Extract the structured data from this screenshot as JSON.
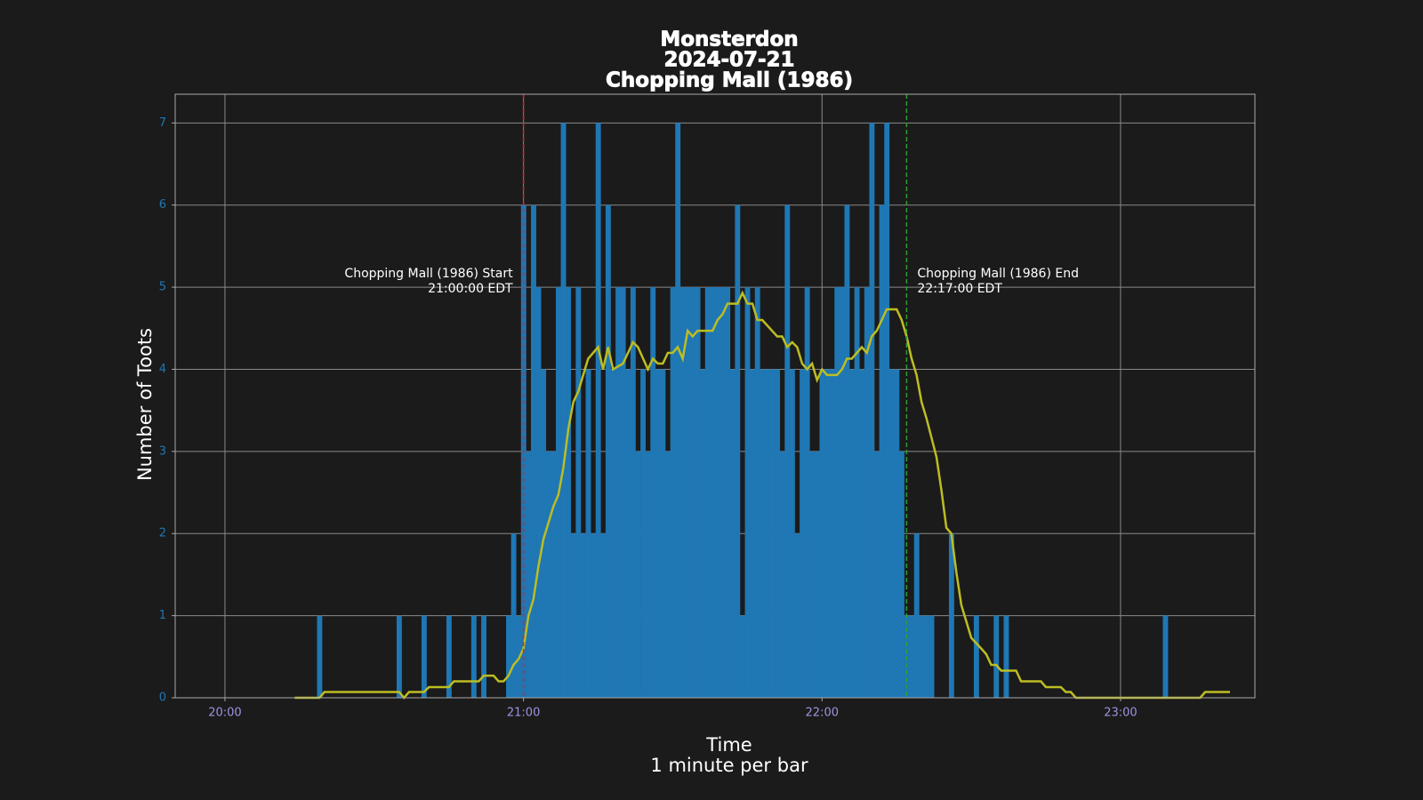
{
  "chart_data": {
    "type": "bar",
    "title": [
      "Monsterdon",
      "2024-07-21",
      "Chopping Mall (1986)"
    ],
    "xlabel": [
      "Time",
      "1 minute per bar"
    ],
    "ylabel": "Number of Toots",
    "xlim": [
      "19:50",
      "23:27"
    ],
    "xticks": [
      "20:00",
      "21:00",
      "22:00",
      "23:00"
    ],
    "ylim": [
      0,
      7.35
    ],
    "yticks": [
      0,
      1,
      2,
      3,
      4,
      5,
      6,
      7
    ],
    "grid": true,
    "series": [
      {
        "type": "bar",
        "color": "#1f77b4",
        "x": [
          "20:19",
          "20:35",
          "20:40",
          "20:45",
          "20:50",
          "20:52",
          "20:57",
          "20:58",
          "20:59",
          "21:00",
          "21:01",
          "21:02",
          "21:03",
          "21:04",
          "21:05",
          "21:06",
          "21:07",
          "21:08",
          "21:09",
          "21:10",
          "21:11",
          "21:12",
          "21:13",
          "21:14",
          "21:15",
          "21:16",
          "21:17",
          "21:18",
          "21:19",
          "21:20",
          "21:21",
          "21:22",
          "21:23",
          "21:24",
          "21:25",
          "21:26",
          "21:27",
          "21:28",
          "21:29",
          "21:30",
          "21:31",
          "21:32",
          "21:33",
          "21:34",
          "21:35",
          "21:36",
          "21:37",
          "21:38",
          "21:39",
          "21:40",
          "21:41",
          "21:42",
          "21:43",
          "21:44",
          "21:45",
          "21:46",
          "21:47",
          "21:48",
          "21:49",
          "21:50",
          "21:51",
          "21:52",
          "21:53",
          "21:54",
          "21:55",
          "21:56",
          "21:57",
          "21:58",
          "21:59",
          "22:00",
          "22:01",
          "22:02",
          "22:03",
          "22:04",
          "22:05",
          "22:06",
          "22:07",
          "22:08",
          "22:09",
          "22:10",
          "22:11",
          "22:12",
          "22:13",
          "22:14",
          "22:15",
          "22:16",
          "22:17",
          "22:18",
          "22:19",
          "22:20",
          "22:21",
          "22:22",
          "22:26",
          "22:31",
          "22:35",
          "22:37",
          "23:09"
        ],
        "values": [
          1,
          1,
          1,
          1,
          1,
          1,
          1,
          2,
          1,
          6,
          3,
          6,
          5,
          4,
          3,
          3,
          5,
          7,
          5,
          2,
          5,
          2,
          4,
          2,
          7,
          2,
          6,
          4,
          5,
          5,
          4,
          5,
          3,
          4,
          3,
          5,
          4,
          4,
          3,
          5,
          7,
          5,
          5,
          5,
          5,
          4,
          5,
          5,
          5,
          5,
          5,
          4,
          6,
          1,
          5,
          4,
          5,
          4,
          4,
          4,
          4,
          3,
          6,
          4,
          2,
          4,
          5,
          3,
          3,
          4,
          4,
          4,
          5,
          5,
          6,
          4,
          5,
          4,
          5,
          7,
          3,
          6,
          7,
          4,
          4,
          3,
          1,
          1,
          2,
          1,
          1,
          1,
          2,
          1,
          1,
          1,
          1
        ]
      },
      {
        "type": "line",
        "color": "#bcbd22",
        "x": [
          "20:14",
          "20:19",
          "20:20",
          "20:35",
          "20:36",
          "20:37",
          "20:40",
          "20:41",
          "20:45",
          "20:46",
          "20:51",
          "20:52",
          "20:54",
          "20:55",
          "20:56",
          "20:57",
          "20:58",
          "20:59",
          "21:00",
          "21:01",
          "21:02",
          "21:03",
          "21:04",
          "21:06",
          "21:07",
          "21:08",
          "21:09",
          "21:10",
          "21:11",
          "21:13",
          "21:15",
          "21:16",
          "21:17",
          "21:18",
          "21:20",
          "21:22",
          "21:23",
          "21:25",
          "21:26",
          "21:27",
          "21:28",
          "21:29",
          "21:30",
          "21:31",
          "21:32",
          "21:33",
          "21:34",
          "21:35",
          "21:38",
          "21:39",
          "21:40",
          "21:41",
          "21:43",
          "21:44",
          "21:45",
          "21:46",
          "21:47",
          "21:48",
          "21:51",
          "21:52",
          "21:53",
          "21:54",
          "21:55",
          "21:56",
          "21:57",
          "21:58",
          "21:59",
          "22:00",
          "22:01",
          "22:03",
          "22:04",
          "22:05",
          "22:06",
          "22:08",
          "22:09",
          "22:10",
          "22:11",
          "22:13",
          "22:15",
          "22:16",
          "22:17",
          "22:18",
          "22:19",
          "22:20",
          "22:21",
          "22:23",
          "22:24",
          "22:25",
          "22:26",
          "22:27",
          "22:28",
          "22:29",
          "22:30",
          "22:32",
          "22:33",
          "22:34",
          "22:35",
          "22:36",
          "22:39",
          "22:40",
          "22:44",
          "22:45",
          "22:48",
          "22:49",
          "22:50",
          "22:51",
          "23:16",
          "23:17",
          "23:22"
        ],
        "values": [
          0,
          0,
          0.07,
          0.07,
          0,
          0.07,
          0.07,
          0.13,
          0.13,
          0.2,
          0.2,
          0.27,
          0.27,
          0.2,
          0.2,
          0.27,
          0.4,
          0.47,
          0.6,
          1.0,
          1.2,
          1.6,
          1.93,
          2.33,
          2.47,
          2.8,
          3.27,
          3.6,
          3.73,
          4.13,
          4.27,
          4.0,
          4.27,
          4.0,
          4.07,
          4.33,
          4.27,
          4.0,
          4.13,
          4.07,
          4.07,
          4.2,
          4.2,
          4.27,
          4.13,
          4.47,
          4.4,
          4.47,
          4.47,
          4.6,
          4.67,
          4.8,
          4.8,
          4.93,
          4.8,
          4.8,
          4.6,
          4.6,
          4.4,
          4.4,
          4.27,
          4.33,
          4.27,
          4.07,
          4.0,
          4.07,
          3.87,
          4.0,
          3.93,
          3.93,
          4.0,
          4.13,
          4.13,
          4.27,
          4.2,
          4.4,
          4.47,
          4.73,
          4.73,
          4.6,
          4.4,
          4.13,
          3.93,
          3.6,
          3.4,
          2.93,
          2.53,
          2.07,
          2.0,
          1.53,
          1.13,
          0.93,
          0.73,
          0.6,
          0.53,
          0.4,
          0.4,
          0.33,
          0.33,
          0.2,
          0.2,
          0.13,
          0.13,
          0.07,
          0.07,
          0,
          0,
          0.07,
          0.07
        ]
      }
    ],
    "annotations": [
      {
        "x": "21:00",
        "color": "#d62728",
        "side": "left",
        "lines": [
          "Chopping Mall (1986) Start",
          "21:00:00 EDT"
        ]
      },
      {
        "x": "22:17",
        "color": "#2ca02c",
        "side": "right",
        "lines": [
          "Chopping Mall (1986) End",
          "22:17:00 EDT"
        ]
      }
    ]
  }
}
